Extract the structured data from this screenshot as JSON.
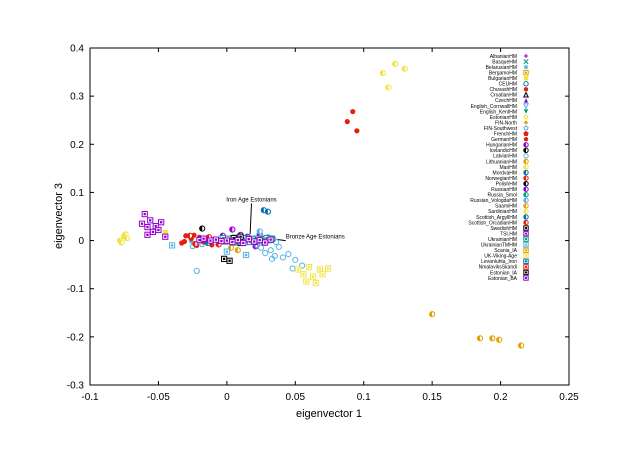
{
  "chart_data": {
    "type": "scatter",
    "title": "",
    "xlabel": "eigenvector 1",
    "ylabel": "eigenvector 3",
    "xlim": [
      -0.1,
      0.25
    ],
    "ylim": [
      -0.3,
      0.4
    ],
    "x_ticks": [
      "-0.1",
      "-0.05",
      "0",
      "0.05",
      "0.1",
      "0.15",
      "0.2",
      "0.25"
    ],
    "y_ticks": [
      "-0.3",
      "-0.2",
      "-0.1",
      "0",
      "0.1",
      "0.2",
      "0.3",
      "0.4"
    ],
    "grid": false,
    "legend_position": "top-right",
    "annotations": [
      {
        "text": "Iron Age Estonians",
        "x": 0.018,
        "y": 0.077,
        "tx": 0.017,
        "ty": 0.013
      },
      {
        "text": "Bronze Age Estonians",
        "x": 0.043,
        "y": 0.0,
        "tx": 0.032,
        "ty": 0.004
      }
    ],
    "series": [
      {
        "name": "AlbanianHM",
        "color": "#9400d3",
        "marker": "plus",
        "points": []
      },
      {
        "name": "BasqueHM",
        "color": "#009e73",
        "marker": "cross",
        "points": []
      },
      {
        "name": "BelarusianHM",
        "color": "#56b4e9",
        "marker": "asterisk",
        "points": [
          [
            -0.026,
            -0.002
          ]
        ]
      },
      {
        "name": "BergamoHM",
        "color": "#e69f00",
        "marker": "sqbox",
        "points": []
      },
      {
        "name": "BulgarianHM",
        "color": "#f0e442",
        "marker": "fsquare",
        "points": [
          [
            -0.045,
            0.017
          ]
        ]
      },
      {
        "name": "CEUHM",
        "color": "#0072b2",
        "marker": "circle",
        "points": []
      },
      {
        "name": "ChuvashHM",
        "color": "#e51e10",
        "marker": "fcircle",
        "points": [
          [
            0.088,
            0.247
          ],
          [
            0.092,
            0.268
          ],
          [
            0.095,
            0.228
          ]
        ]
      },
      {
        "name": "CroatianHM",
        "color": "#000000",
        "marker": "triangle",
        "points": []
      },
      {
        "name": "CzechHM",
        "color": "#9400d3",
        "marker": "ftriangle",
        "points": []
      },
      {
        "name": "English_CornwallHM",
        "color": "#56b4e9",
        "marker": "itriangle",
        "points": []
      },
      {
        "name": "English_KentHM",
        "color": "#009e73",
        "marker": "fitriangle",
        "points": []
      },
      {
        "name": "EstonianHM",
        "color": "#f0e442",
        "marker": "diamond",
        "points": []
      },
      {
        "name": "FIN-North",
        "color": "#e69f00",
        "marker": "fdiamond",
        "points": []
      },
      {
        "name": "FIN-Southwest",
        "color": "#56b4e9",
        "marker": "pentagon",
        "points": [
          [
            -0.025,
            -0.012
          ],
          [
            -0.018,
            -0.008
          ],
          [
            -0.012,
            0.002
          ]
        ]
      },
      {
        "name": "FrenchHM",
        "color": "#e51e10",
        "marker": "fpentagon",
        "points": []
      },
      {
        "name": "GermanHM",
        "color": "#e51e10",
        "marker": "fcircle",
        "points": [
          [
            -0.033,
            -0.005
          ],
          [
            -0.03,
            0.01
          ],
          [
            -0.026,
            0.004
          ],
          [
            -0.022,
            -0.01
          ],
          [
            -0.02,
            0.007
          ],
          [
            -0.017,
            -0.003
          ],
          [
            -0.014,
            0.004
          ],
          [
            -0.011,
            -0.009
          ],
          [
            -0.031,
            -0.002
          ],
          [
            -0.024,
            0.011
          ]
        ]
      },
      {
        "name": "HungarianHM",
        "color": "#9400d3",
        "marker": "halfcircle",
        "points": [
          [
            0.004,
            0.023
          ],
          [
            0.006,
            -0.002
          ],
          [
            0.015,
            0.008
          ],
          [
            0.021,
            -0.012
          ]
        ]
      },
      {
        "name": "IcelandicHM",
        "color": "#000000",
        "marker": "halfcircle",
        "points": [
          [
            -0.018,
            0.025
          ]
        ]
      },
      {
        "name": "LatvianHM",
        "color": "#56b4e9",
        "marker": "circle",
        "points": [
          [
            0.02,
            0.005
          ],
          [
            0.022,
            -0.009
          ],
          [
            0.025,
            -0.015
          ],
          [
            0.028,
            -0.005
          ],
          [
            0.032,
            -0.02
          ],
          [
            0.036,
            -0.003
          ],
          [
            0.038,
            -0.013
          ],
          [
            0.033,
            -0.038
          ],
          [
            0.028,
            -0.026
          ],
          [
            0.045,
            -0.028
          ],
          [
            0.05,
            -0.04
          ],
          [
            0.055,
            -0.052
          ],
          [
            0.048,
            -0.058
          ],
          [
            0.041,
            -0.035
          ],
          [
            0.035,
            -0.032
          ],
          [
            -0.022,
            -0.063
          ]
        ]
      },
      {
        "name": "LithuanianHM",
        "color": "#e69f00",
        "marker": "halfcircle",
        "points": [
          [
            0.003,
            -0.015
          ],
          [
            0.008,
            -0.02
          ],
          [
            0.012,
            -0.005
          ]
        ]
      },
      {
        "name": "MariHM",
        "color": "#f0e442",
        "marker": "halfcircle",
        "points": [
          [
            0.114,
            0.348
          ],
          [
            0.118,
            0.318
          ],
          [
            0.123,
            0.367
          ],
          [
            0.13,
            0.357
          ]
        ]
      },
      {
        "name": "MordvaHM",
        "color": "#0072b2",
        "marker": "halfcircle",
        "points": [
          [
            0.027,
            0.063
          ],
          [
            0.03,
            0.06
          ]
        ]
      },
      {
        "name": "NorwegianHM",
        "color": "#e51e10",
        "marker": "halfcircle",
        "points": [
          [
            -0.013,
            0.007
          ],
          [
            -0.006,
            -0.008
          ]
        ]
      },
      {
        "name": "PolishHM",
        "color": "#000000",
        "marker": "halfcircle",
        "points": [
          [
            0.015,
            0.002
          ],
          [
            0.021,
            -0.003
          ]
        ]
      },
      {
        "name": "RussianHM",
        "color": "#9400d3",
        "marker": "halfcircle",
        "points": [
          [
            -0.003,
            0.01
          ],
          [
            0.01,
            0.012
          ],
          [
            0.024,
            0.013
          ]
        ]
      },
      {
        "name": "Russia_Smol",
        "color": "#009e73",
        "marker": "halfcircle",
        "points": [
          [
            0.002,
            0.003
          ],
          [
            0.013,
            0.002
          ]
        ]
      },
      {
        "name": "Russian_VologdaHM",
        "color": "#56b4e9",
        "marker": "halfcircle",
        "points": [
          [
            0.024,
            0.019
          ],
          [
            0.03,
            0.007
          ],
          [
            0.034,
            0.003
          ]
        ]
      },
      {
        "name": "SaamiHM",
        "color": "#e69f00",
        "marker": "halfcircle",
        "points": [
          [
            0.15,
            -0.153
          ],
          [
            0.185,
            -0.203
          ],
          [
            0.194,
            -0.203
          ],
          [
            0.199,
            -0.206
          ],
          [
            0.215,
            -0.218
          ]
        ]
      },
      {
        "name": "SardinianHM",
        "color": "#f0e442",
        "marker": "halfcircle",
        "points": [
          [
            -0.078,
            0.0
          ],
          [
            -0.075,
            0.009
          ],
          [
            -0.074,
            0.013
          ],
          [
            -0.077,
            -0.004
          ],
          [
            -0.073,
            0.005
          ]
        ]
      },
      {
        "name": "Scottish_ArgyllHM",
        "color": "#0072b2",
        "marker": "halfcircle",
        "points": [
          [
            -0.02,
            0.003
          ],
          [
            -0.014,
            -0.005
          ]
        ]
      },
      {
        "name": "Scottish_OrcadianHM",
        "color": "#e51e10",
        "marker": "halfcircle",
        "points": [
          [
            -0.027,
            0.01
          ],
          [
            -0.023,
            -0.007
          ]
        ]
      },
      {
        "name": "SwedishHM",
        "color": "#000000",
        "marker": "sqbox",
        "points": [
          [
            -0.002,
            -0.038
          ],
          [
            0.002,
            -0.042
          ],
          [
            0.01,
            -0.005
          ]
        ]
      },
      {
        "name": "TSI.HM",
        "color": "#9400d3",
        "marker": "sqbox",
        "points": []
      },
      {
        "name": "UkrainianHM",
        "color": "#009e73",
        "marker": "sqbox",
        "points": [
          [
            -0.003,
            0.005
          ],
          [
            0.001,
            0.004
          ],
          [
            0.006,
            0.006
          ],
          [
            0.009,
            0.003
          ],
          [
            0.012,
            0.005
          ],
          [
            0.016,
            0.004
          ],
          [
            0.019,
            0.002
          ],
          [
            0.023,
            0.004
          ],
          [
            0.026,
            0.003
          ],
          [
            0.029,
            0.005
          ],
          [
            0.033,
            0.004
          ],
          [
            -0.001,
            -0.002
          ],
          [
            0.005,
            -0.004
          ],
          [
            0.011,
            -0.002
          ],
          [
            0.017,
            -0.003
          ],
          [
            0.022,
            -0.001
          ],
          [
            0.027,
            -0.002
          ],
          [
            0.031,
            0.001
          ]
        ]
      },
      {
        "name": "UkrainianTMHM",
        "color": "#56b4e9",
        "marker": "sqbox",
        "points": [
          [
            -0.04,
            -0.01
          ],
          [
            0.0,
            -0.023
          ],
          [
            0.014,
            -0.03
          ]
        ]
      },
      {
        "name": "Scania_IA",
        "color": "#e69f00",
        "marker": "sqbox",
        "points": []
      },
      {
        "name": "UK-Viking-Age",
        "color": "#f0e442",
        "marker": "sqbox",
        "points": [
          [
            0.052,
            -0.06
          ],
          [
            0.056,
            -0.07
          ],
          [
            0.058,
            -0.085
          ],
          [
            0.06,
            -0.055
          ],
          [
            0.063,
            -0.075
          ],
          [
            0.065,
            -0.088
          ],
          [
            0.068,
            -0.06
          ],
          [
            0.07,
            -0.07
          ],
          [
            0.074,
            -0.058
          ]
        ]
      },
      {
        "name": "Levanluhta_Iron",
        "color": "#0072b2",
        "marker": "sqbox",
        "points": []
      },
      {
        "name": "NmalaviksSkandi",
        "color": "#e51e10",
        "marker": "sqbox",
        "points": []
      },
      {
        "name": "Estonian_IA",
        "color": "#000000",
        "marker": "sqbox",
        "points": [
          [
            0.005,
            0.005
          ],
          [
            0.01,
            0.008
          ]
        ]
      },
      {
        "name": "Estonian_BA",
        "color": "#9400d3",
        "marker": "sqbox",
        "points": [
          [
            -0.062,
            0.035
          ],
          [
            -0.06,
            0.055
          ],
          [
            -0.058,
            0.028
          ],
          [
            -0.056,
            0.042
          ],
          [
            -0.054,
            0.018
          ],
          [
            -0.052,
            0.03
          ],
          [
            -0.05,
            0.022
          ],
          [
            -0.048,
            0.038
          ],
          [
            -0.058,
            0.012
          ],
          [
            -0.045,
            0.008
          ],
          [
            -0.02,
            0.001
          ],
          [
            -0.017,
            0.004
          ],
          [
            -0.012,
            0.0
          ],
          [
            -0.008,
            0.002
          ],
          [
            -0.004,
            -0.001
          ],
          [
            0.0,
            0.0
          ],
          [
            0.004,
            -0.003
          ],
          [
            0.008,
            0.001
          ],
          [
            0.012,
            -0.005
          ],
          [
            0.016,
            0.003
          ],
          [
            0.02,
            -0.002
          ],
          [
            0.024,
            0.001
          ],
          [
            0.028,
            -0.004
          ],
          [
            0.032,
            0.002
          ]
        ]
      }
    ]
  }
}
